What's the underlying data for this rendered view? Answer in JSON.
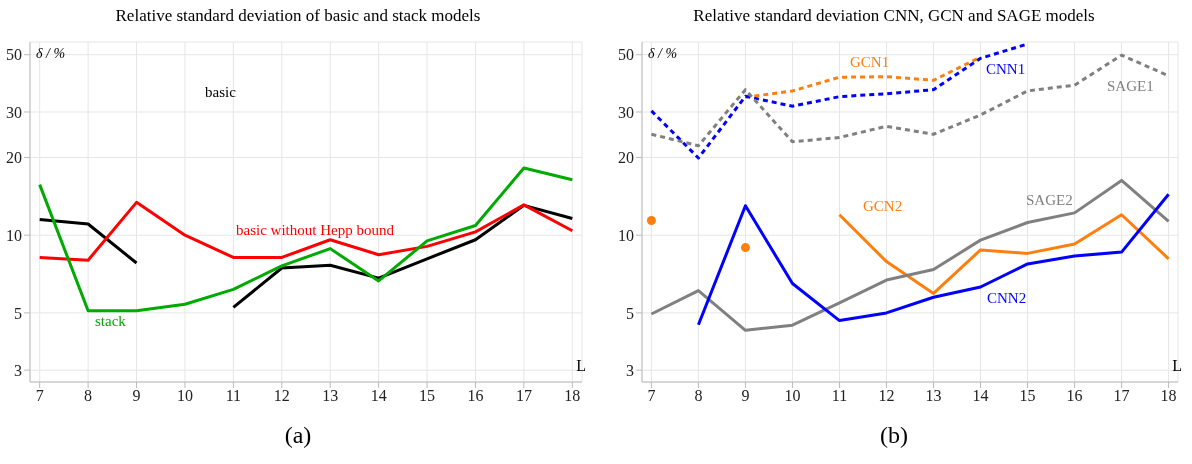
{
  "chart_data": [
    {
      "type": "line",
      "title": "Relative standard deviation of basic and stack models",
      "xlabel": "L",
      "ylabel": "δ / %",
      "annotations": [
        "(a)"
      ],
      "log": "y",
      "grid": true,
      "x": [
        7,
        8,
        9,
        10,
        11,
        12,
        13,
        14,
        15,
        16,
        17,
        18
      ],
      "xlim": [
        6.8,
        18.2
      ],
      "xticks": [
        7,
        8,
        9,
        10,
        11,
        12,
        13,
        14,
        15,
        16,
        17,
        18
      ],
      "ylim": [
        2.7,
        56
      ],
      "yticks": [
        3,
        5,
        10,
        20,
        30,
        50
      ],
      "series": [
        {
          "name": "basic",
          "color": "#000000",
          "values": [
            11.5,
            11.05,
            7.8,
            null,
            5.25,
            7.46,
            7.65,
            6.82,
            8.1,
            9.6,
            13.05,
            11.6
          ]
        },
        {
          "name": "basic without Hepp bound",
          "color": "#ff0000",
          "values": [
            8.2,
            8.0,
            13.4,
            10,
            8.2,
            8.2,
            9.6,
            8.4,
            9.05,
            10.3,
            13.1,
            10.4
          ]
        },
        {
          "name": "stack",
          "color": "#00aa00",
          "values": [
            15.7,
            5.1,
            5.1,
            5.4,
            6.17,
            7.6,
            8.87,
            6.65,
            9.5,
            10.9,
            18.2,
            16.4
          ]
        }
      ]
    },
    {
      "type": "line",
      "title": "Relative standard deviation CNN, GCN and SAGE models",
      "xlabel": "L",
      "ylabel": "δ / %",
      "annotations": [
        "(b)"
      ],
      "log": "y",
      "grid": true,
      "x": [
        7,
        8,
        9,
        10,
        11,
        12,
        13,
        14,
        15,
        16,
        17,
        18
      ],
      "xlim": [
        6.8,
        18.2
      ],
      "xticks": [
        7,
        8,
        9,
        10,
        11,
        12,
        13,
        14,
        15,
        16,
        17,
        18
      ],
      "ylim": [
        2.7,
        56
      ],
      "yticks": [
        3,
        5,
        10,
        20,
        30,
        50
      ],
      "series": [
        {
          "name": "GCN1",
          "color": "#ff7f0e",
          "line_style": "dotted",
          "values": [
            null,
            null,
            34.2,
            36.2,
            40.9,
            41.1,
            39.8,
            49,
            null,
            null,
            null,
            null
          ]
        },
        {
          "name": "CNN1",
          "color": "#0000ff",
          "line_style": "dotted",
          "values": [
            30.3,
            19.9,
            34.5,
            31.6,
            34.4,
            35.3,
            36.6,
            48.4,
            55,
            null,
            null,
            null
          ]
        },
        {
          "name": "SAGE1",
          "color": "#808080",
          "line_style": "dotted",
          "values": [
            24.6,
            22.2,
            36.6,
            23,
            23.9,
            26.4,
            24.6,
            29.2,
            36.2,
            38.1,
            49.8,
            41.4
          ]
        },
        {
          "name": "GCN2",
          "color": "#ff7f0e",
          "line_style": "solid",
          "values": [
            11.4,
            null,
            8.95,
            null,
            12,
            7.9,
            5.95,
            8.77,
            8.5,
            9.25,
            12,
            8.1
          ]
        },
        {
          "name": "SAGE2",
          "color": "#808080",
          "line_style": "solid",
          "values": [
            4.95,
            6.1,
            4.28,
            4.48,
            5.47,
            6.7,
            7.36,
            9.57,
            11.2,
            12.2,
            16.3,
            11.3
          ]
        },
        {
          "name": "CNN2",
          "color": "#0000ff",
          "line_style": "solid",
          "values": [
            null,
            4.5,
            13,
            6.5,
            4.67,
            5.0,
            5.75,
            6.3,
            7.74,
            8.3,
            8.6,
            14.4
          ]
        }
      ]
    }
  ]
}
